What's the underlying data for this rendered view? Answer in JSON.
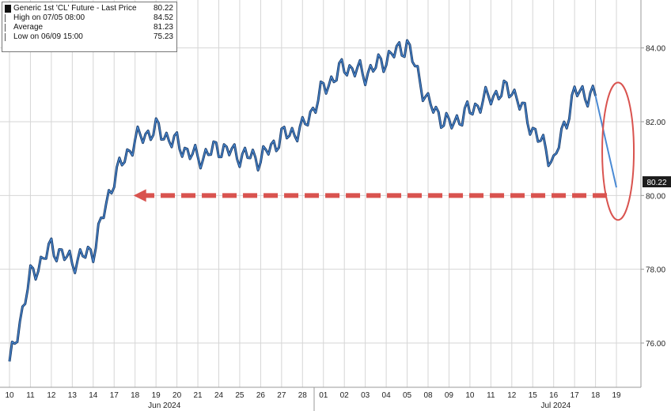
{
  "legend": {
    "title": "Generic 1st 'CL' Future - Last Price",
    "title_value": "80.22",
    "high_label": "High on 07/05 08:00",
    "high_value": "84.52",
    "average_label": "Average",
    "average_value": "81.23",
    "low_label": "Low on 06/09 15:00",
    "low_value": "75.23"
  },
  "last_price_tag": "80.22",
  "colors": {
    "series": "#2f5f9a",
    "series_highlight": "#4a8ad4",
    "annotation": "#d9534f",
    "grid": "#d6d6d6",
    "price_tag_bg": "#1d1d1d"
  },
  "chart_data": {
    "type": "line",
    "title": "Generic 1st 'CL' Future - Last Price",
    "categories": [
      "10",
      "11",
      "12",
      "13",
      "14",
      "17",
      "18",
      "19",
      "20",
      "21",
      "24",
      "25",
      "26",
      "27",
      "28",
      "01",
      "02",
      "03",
      "04",
      "05",
      "08",
      "09",
      "10",
      "11",
      "12",
      "15",
      "16",
      "17",
      "18",
      "19"
    ],
    "month_labels": [
      "Jun 2024",
      "Jul 2024"
    ],
    "y_ticks": [
      "76.00",
      "78.00",
      "80.00",
      "82.00",
      "84.00"
    ],
    "ylim": [
      74.8,
      85.3
    ],
    "grid": true,
    "legend_position": "top-left",
    "series": [
      {
        "values": [
          75.4,
          77.8,
          78.6,
          78.2,
          78.5,
          80.5,
          81.5,
          81.8,
          81.4,
          81.0,
          81.3,
          81.1,
          81.0,
          81.6,
          81.8,
          82.9,
          83.5,
          83.3,
          83.7,
          84.1,
          82.5,
          81.9,
          82.3,
          82.7,
          82.9,
          81.8,
          80.9,
          82.8,
          82.7,
          80.22
        ]
      }
    ],
    "annotations": [
      {
        "type": "dashed-arrow",
        "value": 80.0,
        "from": "19",
        "to": "18"
      },
      {
        "type": "ellipse",
        "around": "19"
      }
    ]
  }
}
